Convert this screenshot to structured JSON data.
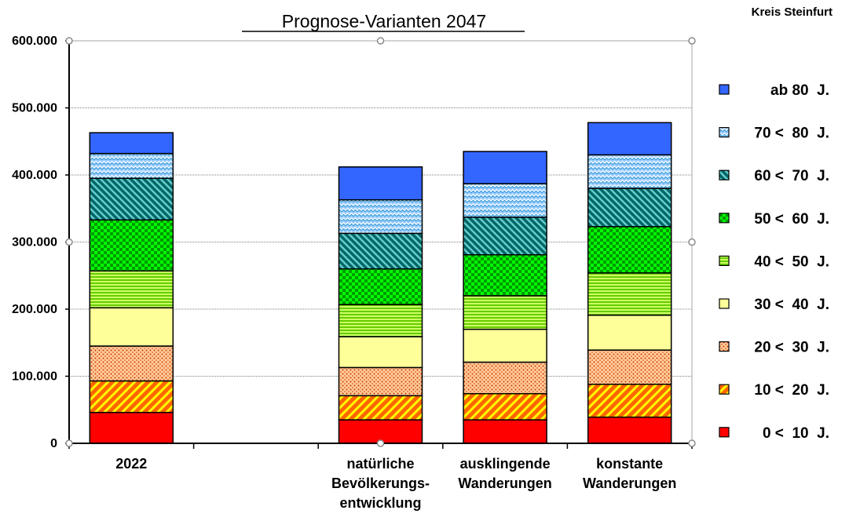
{
  "chart_data": {
    "type": "bar",
    "stacked": true,
    "title": "Prognose-Varianten 2047",
    "corner_label": "Kreis Steinfurt",
    "categories": [
      [
        "2022"
      ],
      [],
      [
        "natürliche",
        "Bevölkerungs-",
        "entwicklung"
      ],
      [
        "ausklingende",
        "Wanderungen"
      ],
      [
        "konstante",
        "Wanderungen"
      ]
    ],
    "y_ticks": [
      "0",
      "100.000",
      "200.000",
      "300.000",
      "400.000",
      "500.000",
      "600.000"
    ],
    "ylim": [
      0,
      600000
    ],
    "grid": true,
    "legend_position": "right",
    "series": [
      {
        "name": "0 <  10  J.",
        "color": "#ff0000",
        "pattern": "solid",
        "values": [
          46000,
          null,
          35000,
          35000,
          39000
        ]
      },
      {
        "name": "10 <  20  J.",
        "color": "#ff6600",
        "pattern": "diagonal",
        "values": [
          47000,
          null,
          36000,
          39000,
          49000
        ]
      },
      {
        "name": "20 <  30  J.",
        "color": "#ffcc99",
        "pattern": "dots",
        "values": [
          52000,
          null,
          42000,
          47000,
          51000
        ]
      },
      {
        "name": "30 <  40  J.",
        "color": "#ffff99",
        "pattern": "solid",
        "values": [
          57000,
          null,
          46000,
          49000,
          52000
        ]
      },
      {
        "name": "40 <  50  J.",
        "color": "#99ff33",
        "pattern": "hlines",
        "values": [
          55000,
          null,
          48000,
          50000,
          63000
        ]
      },
      {
        "name": "50 <  60  J.",
        "color": "#00cc00",
        "pattern": "checker",
        "values": [
          76000,
          null,
          53000,
          61000,
          69000
        ]
      },
      {
        "name": "60 <  70  J.",
        "color": "#339999",
        "pattern": "diagonal",
        "values": [
          62000,
          null,
          53000,
          56000,
          57000
        ]
      },
      {
        "name": "70 <  80  J.",
        "color": "#99ccff",
        "pattern": "wave",
        "values": [
          37000,
          null,
          50000,
          50000,
          50000
        ]
      },
      {
        "name": "ab 80  J.",
        "color": "#3366ff",
        "pattern": "solid",
        "values": [
          31000,
          null,
          49000,
          48000,
          48000
        ]
      }
    ]
  }
}
